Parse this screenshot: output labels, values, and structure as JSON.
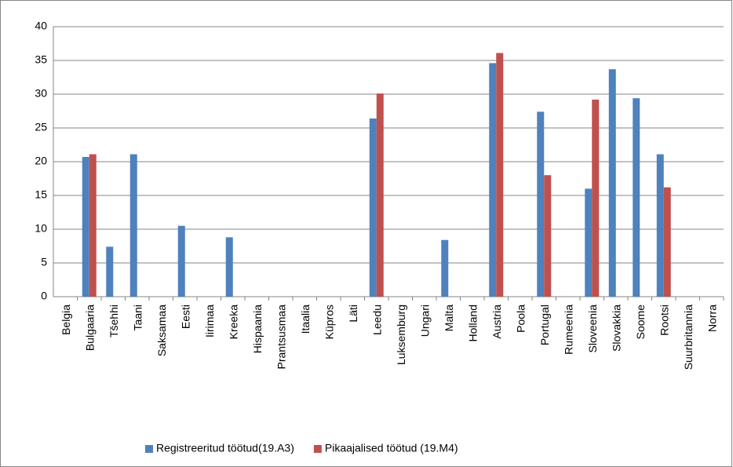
{
  "chart_data": {
    "type": "bar",
    "categories": [
      "Belgia",
      "Bulgaaria",
      "Tšehhi",
      "Taani",
      "Saksamaa",
      "Eesti",
      "Iirimaa",
      "Kreeka",
      "Hispaania",
      "Prantsusmaa",
      "Itaalia",
      "Küpros",
      "Läti",
      "Leedu",
      "Luksemburg",
      "Ungari",
      "Malta",
      "Holland",
      "Austria",
      "Poola",
      "Portugal",
      "Rumeenia",
      "Sloveenia",
      "Slovakkia",
      "Soome",
      "Rootsi",
      "Suurbritannia",
      "Norra"
    ],
    "series": [
      {
        "name": "Registreeritud töötud(19.A3)",
        "color": "#4f81bd",
        "values": [
          null,
          20.7,
          7.4,
          21.1,
          null,
          10.5,
          null,
          8.8,
          null,
          null,
          null,
          null,
          null,
          26.4,
          null,
          null,
          8.4,
          null,
          34.6,
          null,
          27.4,
          null,
          16.0,
          33.7,
          29.4,
          21.1,
          null,
          null
        ]
      },
      {
        "name": "Pikaajalised töötud (19.M4)",
        "color": "#c0504d",
        "values": [
          null,
          21.1,
          null,
          null,
          null,
          null,
          null,
          null,
          null,
          null,
          null,
          null,
          null,
          30.1,
          null,
          null,
          null,
          null,
          36.1,
          null,
          18.0,
          null,
          29.2,
          null,
          null,
          16.2,
          null,
          null
        ]
      }
    ],
    "ylim": [
      0,
      40
    ],
    "yticks": [
      0,
      5,
      10,
      15,
      20,
      25,
      30,
      35,
      40
    ],
    "grid": true,
    "legend": "bottom"
  }
}
